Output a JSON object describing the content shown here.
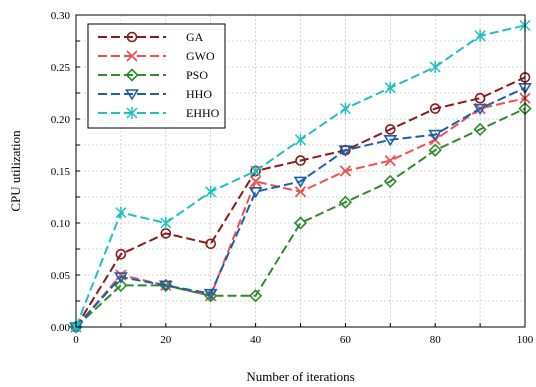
{
  "chart_data": {
    "type": "line",
    "xlabel": "Number of iterations",
    "ylabel": "CPU utilization",
    "xlim": [
      0,
      100
    ],
    "ylim": [
      0,
      0.3
    ],
    "xticks": [
      0,
      20,
      40,
      60,
      80,
      100
    ],
    "xtick_labels": [
      "0",
      "20",
      "40",
      "60",
      "80",
      "100"
    ],
    "yticks": [
      0,
      0.05,
      0.1,
      0.15,
      0.2,
      0.25,
      0.3
    ],
    "ytick_labels": [
      "0.00",
      "0.05",
      "0.10",
      "0.15",
      "0.20",
      "0.25",
      "0.30"
    ],
    "grid": true,
    "legend_position": "top-left",
    "x": [
      0,
      10,
      20,
      30,
      40,
      50,
      60,
      70,
      80,
      90,
      100
    ],
    "series": [
      {
        "name": "GA",
        "color": "#8b1a1a",
        "dash": "dash",
        "marker": "circle",
        "values": [
          0.0,
          0.07,
          0.09,
          0.08,
          0.15,
          0.16,
          0.17,
          0.19,
          0.21,
          0.22,
          0.24
        ]
      },
      {
        "name": "GWO",
        "color": "#f05050",
        "dash": "dash",
        "marker": "x",
        "values": [
          0.0,
          0.05,
          0.04,
          0.03,
          0.14,
          0.13,
          0.15,
          0.16,
          0.18,
          0.21,
          0.22
        ]
      },
      {
        "name": "PSO",
        "color": "#2e8b2e",
        "dash": "dash",
        "marker": "diamond",
        "values": [
          0.0,
          0.04,
          0.04,
          0.03,
          0.03,
          0.1,
          0.12,
          0.14,
          0.17,
          0.19,
          0.21
        ]
      },
      {
        "name": "HHO",
        "color": "#1f5fa8",
        "dash": "dash",
        "marker": "triangle-down",
        "values": [
          0.0,
          0.048,
          0.04,
          0.032,
          0.13,
          0.14,
          0.17,
          0.18,
          0.185,
          0.21,
          0.23
        ]
      },
      {
        "name": "EHHO",
        "color": "#20c0c0",
        "dash": "dash",
        "marker": "star",
        "values": [
          0.0,
          0.11,
          0.1,
          0.13,
          0.15,
          0.18,
          0.21,
          0.23,
          0.25,
          0.28,
          0.29
        ]
      }
    ]
  }
}
